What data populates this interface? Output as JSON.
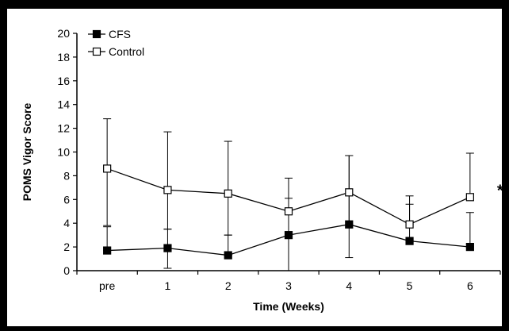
{
  "chart_data": {
    "type": "line",
    "title": "",
    "xlabel": "Time (Weeks)",
    "ylabel": "POMS Vigor Score",
    "categories": [
      "pre",
      "1",
      "2",
      "3",
      "4",
      "5",
      "6"
    ],
    "ylim": [
      0,
      20
    ],
    "ytick_step": 2,
    "grid": false,
    "legend_position": "top-left",
    "series": [
      {
        "name": "CFS",
        "marker": "filled-square",
        "values": [
          1.7,
          1.9,
          1.3,
          3.0,
          3.9,
          2.5,
          2.0
        ],
        "err_upper": [
          3.7,
          3.5,
          3.0,
          6.1,
          9.7,
          5.6,
          4.9
        ],
        "err_lower": [
          1.7,
          0.2,
          1.3,
          0.0,
          1.1,
          2.5,
          2.0
        ]
      },
      {
        "name": "Control",
        "marker": "open-square",
        "values": [
          8.6,
          6.8,
          6.5,
          5.0,
          6.6,
          3.9,
          6.2
        ],
        "err_upper": [
          12.8,
          11.7,
          10.9,
          7.8,
          9.7,
          6.3,
          9.9
        ],
        "err_lower": [
          3.8,
          3.5,
          3.0,
          0.0,
          3.6,
          3.9,
          6.2
        ]
      }
    ],
    "annotations": [
      {
        "text": "*",
        "category": "6",
        "y": 7.0
      }
    ]
  }
}
